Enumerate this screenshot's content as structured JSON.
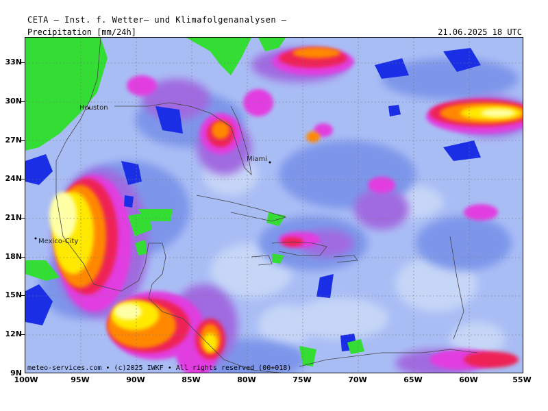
{
  "header": {
    "title": "CETA – Inst. f. Wetter– und Klimafolgenanalysen –",
    "parameter": "Precipitation [mm/24h]",
    "timestamp": "21.06.2025 18 UTC"
  },
  "footer": {
    "credit": "meteo-services.com • (c)2025 IWKF • All rights reserved (00+018)"
  },
  "map": {
    "lon_range": [
      -100,
      -55
    ],
    "lat_range": [
      9,
      35
    ],
    "lon_labels": [
      "100W",
      "95W",
      "90W",
      "85W",
      "80W",
      "75W",
      "70W",
      "65W",
      "60W",
      "55W"
    ],
    "lat_labels": [
      "9N",
      "12N",
      "15N",
      "18N",
      "21N",
      "24N",
      "27N",
      "30N",
      "33N"
    ],
    "cities": [
      {
        "name": "Houston",
        "lon": -95.4,
        "lat": 29.8
      },
      {
        "name": "Miami",
        "lon": -80.2,
        "lat": 25.8
      },
      {
        "name": "Mexico-City",
        "lon": -99.1,
        "lat": 19.4
      }
    ],
    "colors": {
      "land_dry": "#33dd33",
      "very_light": "#c6d6f7",
      "light": "#a9bdf5",
      "moderate": "#7d96ea",
      "deep_blue": "#1a2ee6",
      "purple": "#a06ae0",
      "magenta": "#e23de0",
      "red": "#ee2255",
      "orange": "#ff8800",
      "yellow": "#ffe900",
      "pale_yellow": "#ffffa6"
    }
  }
}
